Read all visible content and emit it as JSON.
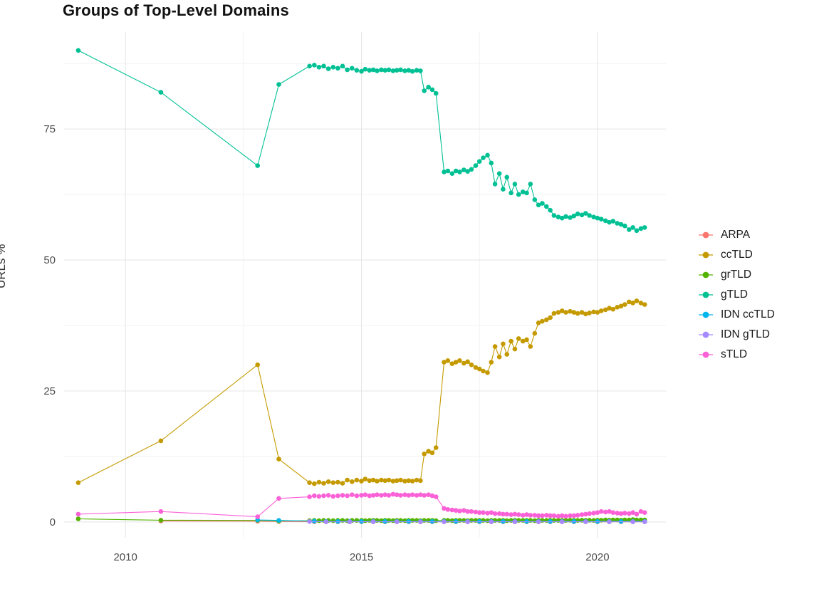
{
  "title": "Groups of Top-Level Domains",
  "ylabel": "URLs %",
  "chart_data": {
    "type": "line",
    "title": "Groups of Top-Level Domains",
    "xlabel": "",
    "ylabel": "URLs %",
    "grid": true,
    "legend_position": "right",
    "xlim": [
      2008.7,
      2021.45
    ],
    "ylim": [
      -3.0,
      93.5
    ],
    "x_ticks": [
      2010,
      2015,
      2020
    ],
    "y_ticks": [
      0,
      25,
      50,
      75
    ],
    "x_minor_ticks": [
      2012.5,
      2017.5
    ],
    "y_minor_ticks": [
      12.5,
      37.5,
      62.5,
      87.5
    ],
    "x": [
      2009.0,
      2010.75,
      2012.8,
      2013.25,
      2013.9,
      2014.0,
      2014.1,
      2014.2,
      2014.3,
      2014.4,
      2014.5,
      2014.6,
      2014.7,
      2014.8,
      2014.9,
      2015.0,
      2015.08,
      2015.17,
      2015.25,
      2015.33,
      2015.42,
      2015.5,
      2015.58,
      2015.67,
      2015.75,
      2015.83,
      2015.92,
      2016.0,
      2016.08,
      2016.17,
      2016.25,
      2016.33,
      2016.42,
      2016.5,
      2016.58,
      2016.75,
      2016.83,
      2016.92,
      2017.0,
      2017.08,
      2017.17,
      2017.25,
      2017.33,
      2017.42,
      2017.5,
      2017.58,
      2017.67,
      2017.75,
      2017.83,
      2017.92,
      2018.0,
      2018.08,
      2018.17,
      2018.25,
      2018.33,
      2018.42,
      2018.5,
      2018.58,
      2018.67,
      2018.75,
      2018.83,
      2018.92,
      2019.0,
      2019.08,
      2019.17,
      2019.25,
      2019.33,
      2019.42,
      2019.5,
      2019.58,
      2019.67,
      2019.75,
      2019.83,
      2019.92,
      2020.0,
      2020.08,
      2020.17,
      2020.25,
      2020.33,
      2020.42,
      2020.5,
      2020.58,
      2020.67,
      2020.75,
      2020.83,
      2020.92,
      2021.0
    ],
    "series": [
      {
        "name": "ARPA",
        "color": "#F8766D",
        "points": [
          [
            2010.75,
            0.2
          ],
          [
            2012.8,
            0.15
          ],
          [
            2013.25,
            0.1
          ],
          [
            2014.0,
            0.05
          ],
          [
            2014.25,
            0.05
          ],
          [
            2014.5,
            0.05
          ],
          [
            2014.75,
            0.05
          ],
          [
            2015.0,
            0.05
          ],
          [
            2015.25,
            0.05
          ],
          [
            2015.5,
            0.05
          ],
          [
            2015.75,
            0.05
          ],
          [
            2016.0,
            0.05
          ],
          [
            2016.25,
            0.05
          ],
          [
            2016.5,
            0.05
          ],
          [
            2016.75,
            0.05
          ],
          [
            2017.0,
            0.05
          ],
          [
            2017.25,
            0.05
          ],
          [
            2017.5,
            0.05
          ],
          [
            2017.75,
            0.05
          ],
          [
            2018.0,
            0.05
          ],
          [
            2018.25,
            0.05
          ],
          [
            2018.5,
            0.05
          ],
          [
            2018.75,
            0.05
          ],
          [
            2019.0,
            0.05
          ],
          [
            2019.25,
            0.05
          ],
          [
            2019.5,
            0.05
          ],
          [
            2019.75,
            0.05
          ],
          [
            2020.0,
            0.05
          ],
          [
            2020.25,
            0.05
          ],
          [
            2020.5,
            0.05
          ],
          [
            2020.75,
            0.05
          ],
          [
            2021.0,
            0.05
          ]
        ]
      },
      {
        "name": "ccTLD",
        "color": "#C49A00",
        "values": [
          7.5,
          15.5,
          30,
          12,
          7.5,
          7.3,
          7.6,
          7.4,
          7.7,
          7.5,
          7.6,
          7.4,
          8,
          7.7,
          8,
          7.8,
          8.2,
          7.9,
          8,
          7.8,
          8,
          7.9,
          8,
          7.8,
          7.9,
          8,
          7.8,
          7.9,
          7.8,
          8,
          7.9,
          13,
          13.5,
          13.2,
          14.2,
          30.5,
          30.8,
          30.2,
          30.5,
          30.8,
          30.3,
          30.6,
          30,
          29.5,
          29.2,
          28.8,
          28.5,
          30.5,
          33.5,
          31.5,
          34,
          32,
          34.5,
          33,
          35,
          34.5,
          34.8,
          33.5,
          36,
          38,
          38.3,
          38.6,
          39,
          39.8,
          40,
          40.3,
          40,
          40.2,
          40,
          39.8,
          40,
          39.7,
          39.9,
          40.1,
          40,
          40.3,
          40.5,
          40.8,
          40.6,
          41,
          41.2,
          41.5,
          42,
          41.8,
          42.2,
          41.8,
          41.5
        ]
      },
      {
        "name": "grTLD",
        "color": "#53B400",
        "values": [
          0.6,
          0.35,
          0.3,
          0.2,
          0.25,
          0.3,
          0.25,
          0.3,
          0.3,
          0.25,
          0.3,
          0.3,
          0.25,
          0.3,
          0.3,
          0.3,
          0.25,
          0.3,
          0.3,
          0.3,
          0.25,
          0.3,
          0.3,
          0.25,
          0.3,
          0.3,
          0.25,
          0.3,
          0.3,
          0.3,
          0.25,
          0.3,
          0.3,
          0.3,
          0.25,
          0.3,
          0.3,
          0.25,
          0.3,
          0.3,
          0.3,
          0.25,
          0.3,
          0.3,
          0.3,
          0.3,
          0.25,
          0.3,
          0.3,
          0.3,
          0.3,
          0.25,
          0.3,
          0.3,
          0.3,
          0.3,
          0.3,
          0.3,
          0.25,
          0.3,
          0.3,
          0.3,
          0.3,
          0.3,
          0.3,
          0.3,
          0.3,
          0.35,
          0.3,
          0.3,
          0.35,
          0.3,
          0.35,
          0.3,
          0.35,
          0.35,
          0.4,
          0.35,
          0.4,
          0.4,
          0.35,
          0.4,
          0.4,
          0.45,
          0.4,
          0.4,
          0.4
        ]
      },
      {
        "name": "gTLD",
        "color": "#00C094",
        "values": [
          90,
          82,
          68,
          83.5,
          87,
          87.2,
          86.8,
          87,
          86.5,
          86.8,
          86.6,
          87,
          86.3,
          86.6,
          86.2,
          86,
          86.4,
          86.2,
          86.3,
          86.1,
          86.3,
          86.2,
          86.3,
          86.1,
          86.2,
          86.3,
          86.1,
          86.2,
          86,
          86.2,
          86.1,
          82.3,
          83,
          82.5,
          81.8,
          66.8,
          67,
          66.5,
          67,
          66.8,
          67.2,
          66.9,
          67.3,
          68,
          68.8,
          69.5,
          70,
          68.5,
          64.5,
          66.5,
          63.5,
          65.8,
          62.8,
          64.5,
          62.5,
          63,
          62.8,
          64.5,
          61.5,
          60.5,
          60.8,
          60.2,
          59.5,
          58.5,
          58.2,
          58,
          58.3,
          58.1,
          58.4,
          58.8,
          58.6,
          58.9,
          58.5,
          58.2,
          58,
          57.8,
          57.5,
          57.2,
          57.4,
          57,
          56.8,
          56.5,
          55.8,
          56.2,
          55.6,
          56,
          56.2
        ]
      },
      {
        "name": "IDN ccTLD",
        "color": "#00B6EB",
        "points": [
          [
            2012.8,
            0.4
          ],
          [
            2013.25,
            0.3
          ],
          [
            2014.0,
            0.15
          ],
          [
            2014.25,
            0.1
          ],
          [
            2014.5,
            0.1
          ],
          [
            2014.75,
            0.1
          ],
          [
            2015.0,
            0.1
          ],
          [
            2015.25,
            0.1
          ],
          [
            2015.5,
            0.1
          ],
          [
            2015.75,
            0.1
          ],
          [
            2016.0,
            0.1
          ],
          [
            2016.25,
            0.1
          ],
          [
            2016.5,
            0.1
          ],
          [
            2016.75,
            0.1
          ],
          [
            2017.0,
            0.1
          ],
          [
            2017.25,
            0.1
          ],
          [
            2017.5,
            0.1
          ],
          [
            2017.75,
            0.1
          ],
          [
            2018.0,
            0.1
          ],
          [
            2018.25,
            0.1
          ],
          [
            2018.5,
            0.1
          ],
          [
            2018.75,
            0.1
          ],
          [
            2019.0,
            0.1
          ],
          [
            2019.25,
            0.1
          ],
          [
            2019.5,
            0.1
          ],
          [
            2019.75,
            0.1
          ],
          [
            2020.0,
            0.1
          ],
          [
            2020.25,
            0.1
          ],
          [
            2020.5,
            0.1
          ],
          [
            2020.75,
            0.1
          ],
          [
            2021.0,
            0.1
          ]
        ]
      },
      {
        "name": "IDN gTLD",
        "color": "#A58AFF",
        "points": [
          [
            2013.9,
            0.1
          ],
          [
            2014.25,
            0.05
          ],
          [
            2014.75,
            0.05
          ],
          [
            2015.25,
            0.05
          ],
          [
            2015.75,
            0.05
          ],
          [
            2016.25,
            0.05
          ],
          [
            2016.75,
            0.05
          ],
          [
            2017.25,
            0.05
          ],
          [
            2017.75,
            0.05
          ],
          [
            2018.25,
            0.05
          ],
          [
            2018.75,
            0.05
          ],
          [
            2019.25,
            0.05
          ],
          [
            2019.75,
            0.05
          ],
          [
            2020.25,
            0.05
          ],
          [
            2020.75,
            0.05
          ],
          [
            2021.0,
            0.05
          ]
        ]
      },
      {
        "name": "sTLD",
        "color": "#FB61D7",
        "values": [
          1.5,
          2,
          1,
          4.5,
          4.8,
          5,
          4.9,
          5,
          5.1,
          4.9,
          5,
          5.1,
          5,
          5.2,
          5,
          5.1,
          5.2,
          5,
          5.1,
          5.2,
          5.1,
          5.2,
          5.1,
          5.3,
          5.2,
          5.1,
          5.2,
          5.1,
          5.2,
          5.1,
          5.2,
          5.1,
          5.2,
          5,
          4.8,
          2.6,
          2.4,
          2.3,
          2.2,
          2.1,
          2.2,
          2,
          2,
          1.9,
          1.8,
          1.8,
          1.7,
          1.8,
          1.6,
          1.6,
          1.5,
          1.5,
          1.4,
          1.5,
          1.4,
          1.3,
          1.4,
          1.3,
          1.3,
          1.2,
          1.2,
          1.3,
          1.2,
          1.2,
          1.1,
          1.2,
          1.1,
          1.2,
          1.2,
          1.3,
          1.4,
          1.5,
          1.6,
          1.7,
          1.8,
          2,
          1.9,
          2,
          1.8,
          1.7,
          1.6,
          1.7,
          1.6,
          1.8,
          1.5,
          2,
          1.8
        ]
      }
    ],
    "style": {
      "grid_major_color": "#e5e5e5",
      "grid_minor_color": "#f2f2f2",
      "tick_label_color": "#4d4d4d",
      "background": "#ffffff"
    }
  }
}
